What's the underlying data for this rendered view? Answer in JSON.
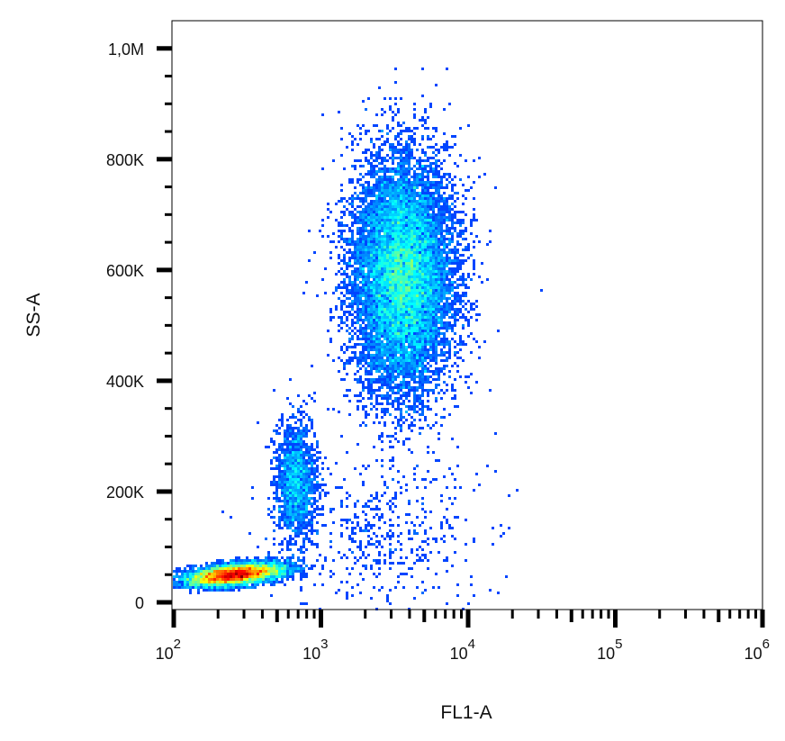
{
  "chart_data": {
    "type": "scatter",
    "style": "density (jet colormap: blue low → red high)",
    "xlabel": "FL1-A",
    "ylabel": "SS-A",
    "x_scale": "log",
    "xlim": [
      100,
      1000000
    ],
    "ylim": [
      -13000,
      1050000
    ],
    "x_ticks": [
      {
        "value": 100,
        "base": "10",
        "exp": "2"
      },
      {
        "value": 1000,
        "base": "10",
        "exp": "3"
      },
      {
        "value": 10000,
        "base": "10",
        "exp": "4"
      },
      {
        "value": 100000,
        "base": "10",
        "exp": "5"
      },
      {
        "value": 1000000,
        "base": "10",
        "exp": "6"
      }
    ],
    "y_ticks": [
      {
        "value": 0,
        "label": "0"
      },
      {
        "value": 200000,
        "label": "200K"
      },
      {
        "value": 400000,
        "label": "400K"
      },
      {
        "value": 600000,
        "label": "600K"
      },
      {
        "value": 800000,
        "label": "800K"
      },
      {
        "value": 1000000,
        "label": "1,0M"
      }
    ],
    "y_minor_step": 50000,
    "grid": false,
    "populations": [
      {
        "x_center": 260,
        "y_center": 50000,
        "x_log_sd": 0.17,
        "y_sd": 17000,
        "events": 6500
      },
      {
        "x_center": 680,
        "y_center": 220000,
        "x_log_sd": 0.07,
        "y_sd": 55000,
        "events": 1600
      },
      {
        "x_center": 3600,
        "y_center": 590000,
        "x_log_sd": 0.17,
        "y_sd": 105000,
        "events": 13000
      },
      {
        "x_center": 2500,
        "y_center": 120000,
        "x_log_sd": 0.35,
        "y_sd": 70000,
        "events": 500
      }
    ],
    "colormap": [
      "#0000ff",
      "#00ffff",
      "#00ff00",
      "#ffff00",
      "#ff0000"
    ]
  }
}
